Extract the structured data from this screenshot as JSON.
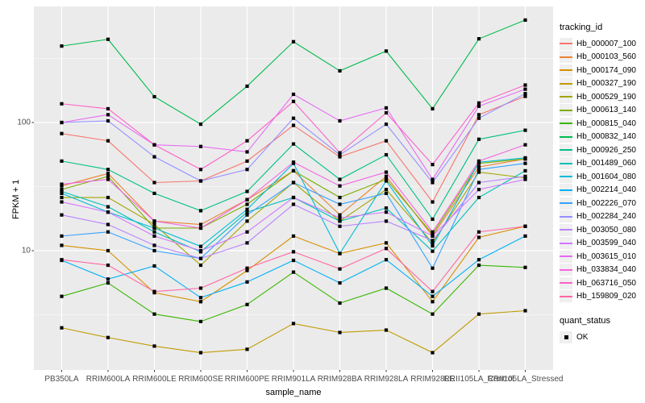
{
  "chart_data": {
    "type": "line",
    "title": "",
    "xlabel": "sample_name",
    "ylabel": "FPKM + 1",
    "y_scale": "log10",
    "yticks": [
      10,
      100
    ],
    "ylim": [
      1.2,
      800
    ],
    "grid": "on",
    "panel_background": "#EBEBEB",
    "gridline_color": "#FFFFFF",
    "marker": {
      "shape": "square",
      "color": "#000000"
    },
    "legend_position": "right",
    "legend_title": "tracking_id",
    "quant_legend": {
      "title": "quant_status",
      "items": [
        {
          "label": "OK"
        }
      ]
    },
    "categories": [
      "PB350LA",
      "RRIM600LA",
      "RRIM600LE",
      "RRIM600SE",
      "RRIM600PE",
      "RRIM901LA",
      "RRIM928BA",
      "RRIM928LA",
      "RRIM928LE",
      "RRII105LA_Control",
      "RRII105LA_Stressed"
    ],
    "series": [
      {
        "name": "Hb_000007_100",
        "color": "#F8766D",
        "values": [
          82,
          72,
          34,
          35,
          50,
          95,
          54,
          72,
          24,
          115,
          160
        ]
      },
      {
        "name": "Hb_000103_560",
        "color": "#EA8331",
        "values": [
          32,
          40,
          17,
          16,
          25,
          42,
          19,
          38,
          13,
          45,
          52
        ]
      },
      {
        "name": "Hb_000174_090",
        "color": "#D89000",
        "values": [
          11,
          10,
          4.7,
          4.0,
          7.0,
          13,
          9.5,
          11.5,
          4.0,
          12.7,
          15.5
        ]
      },
      {
        "name": "Hb_000327_190",
        "color": "#C09B00",
        "values": [
          2.5,
          2.1,
          1.8,
          1.6,
          1.7,
          2.7,
          2.3,
          2.4,
          1.6,
          3.2,
          3.4
        ]
      },
      {
        "name": "Hb_000529_190",
        "color": "#A3A500",
        "values": [
          26,
          26,
          16,
          7.7,
          17,
          34,
          17,
          30,
          11.5,
          41,
          37
        ]
      },
      {
        "name": "Hb_000613_140",
        "color": "#7CAE00",
        "values": [
          30,
          38,
          15,
          15,
          23,
          42,
          26,
          36,
          13.5,
          48,
          52
        ]
      },
      {
        "name": "Hb_000815_040",
        "color": "#39B600",
        "values": [
          4.4,
          5.6,
          3.2,
          2.8,
          3.8,
          6.8,
          3.9,
          5.1,
          3.2,
          7.7,
          7.4
        ]
      },
      {
        "name": "Hb_000832_140",
        "color": "#00BB4E",
        "values": [
          395,
          446,
          159,
          97,
          192,
          427,
          253,
          361,
          128,
          450,
          630
        ]
      },
      {
        "name": "Hb_000926_250",
        "color": "#00C087",
        "values": [
          50,
          43,
          28,
          20.5,
          29,
          68,
          36,
          56,
          17.6,
          74,
          87
        ]
      },
      {
        "name": "Hb_001489_060",
        "color": "#00C0B8",
        "values": [
          29,
          22,
          14,
          9.8,
          20,
          26,
          17,
          21.5,
          9.9,
          26,
          42
        ]
      },
      {
        "name": "Hb_001604_080",
        "color": "#00BCD8",
        "values": [
          28,
          20,
          15,
          10.8,
          21,
          48,
          9.5,
          35,
          10.9,
          49,
          53
        ]
      },
      {
        "name": "Hb_002214_040",
        "color": "#00B0F6",
        "values": [
          8.4,
          6.0,
          7.6,
          4.3,
          5.7,
          8.4,
          5.6,
          8.5,
          4.4,
          8.5,
          13
        ]
      },
      {
        "name": "Hb_002226_070",
        "color": "#35A2FF",
        "values": [
          13,
          14,
          10,
          8.7,
          19,
          34,
          23,
          28,
          7.3,
          43,
          48
        ]
      },
      {
        "name": "Hb_002284_240",
        "color": "#9590FF",
        "values": [
          100,
          103,
          54,
          35,
          43,
          108,
          56,
          97,
          34,
          108,
          168
        ]
      },
      {
        "name": "Hb_003050_080",
        "color": "#B983FF",
        "values": [
          19,
          16,
          11,
          8.7,
          11.5,
          23,
          15.5,
          17,
          12,
          34,
          38
        ]
      },
      {
        "name": "Hb_003599_040",
        "color": "#D376FF",
        "values": [
          24,
          20,
          13,
          10,
          14,
          26,
          18,
          20,
          13,
          30,
          36
        ]
      },
      {
        "name": "Hb_003615_010",
        "color": "#E76BF3",
        "values": [
          100,
          115,
          67,
          65,
          59,
          166,
          103,
          130,
          36,
          134,
          182
        ]
      },
      {
        "name": "Hb_033834_040",
        "color": "#F564E3",
        "values": [
          33,
          36,
          17,
          15,
          25,
          49,
          32,
          41,
          14,
          50,
          67
        ]
      },
      {
        "name": "Hb_063716_050",
        "color": "#FD61CA",
        "values": [
          140,
          128,
          67,
          43,
          72,
          146,
          58,
          119,
          47,
          142,
          196
        ]
      },
      {
        "name": "Hb_159809_020",
        "color": "#FF67A4",
        "values": [
          8.5,
          7.7,
          4.8,
          5.1,
          7.3,
          9.8,
          7.2,
          10.4,
          4.8,
          14,
          15.5
        ]
      }
    ]
  }
}
